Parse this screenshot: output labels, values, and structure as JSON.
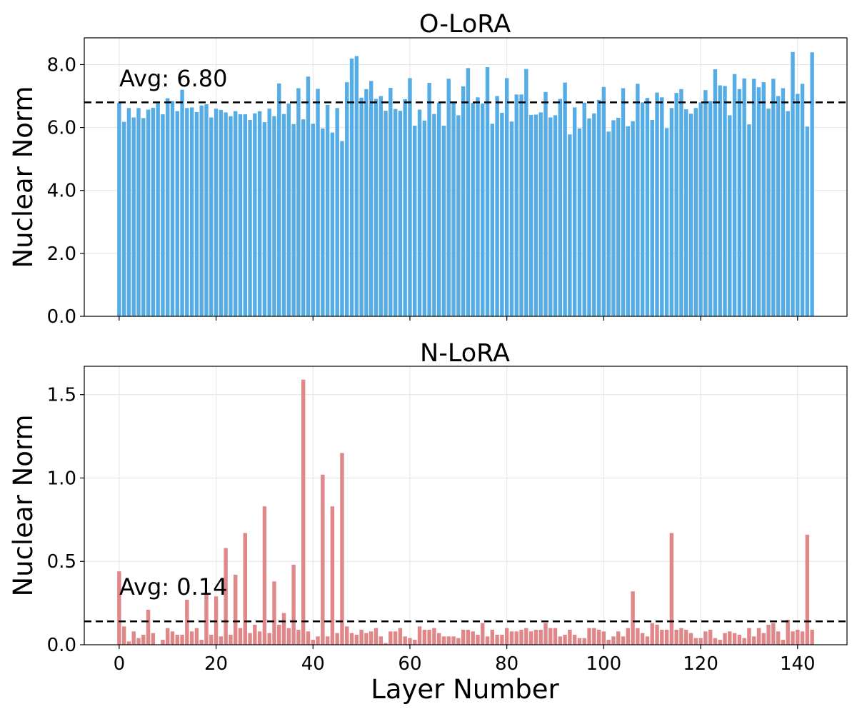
{
  "chart_data": [
    {
      "type": "bar",
      "title": "O-LoRA",
      "xlabel": "",
      "ylabel": "Nuclear Norm",
      "x_range": [
        -7.2,
        150.2
      ],
      "ylim": [
        0,
        8.85
      ],
      "yticks": [
        0,
        2,
        4,
        6,
        8
      ],
      "ytick_labels": [
        "0.0",
        "2.0",
        "4.0",
        "6.0",
        "8.0"
      ],
      "xticks": [
        0,
        20,
        40,
        60,
        80,
        100,
        120,
        140
      ],
      "xtick_labels_visible": false,
      "grid": true,
      "bar_color": "#56ade6",
      "average": 6.8,
      "average_label": "Avg: 6.80",
      "values": [
        6.78,
        6.18,
        6.62,
        6.32,
        6.62,
        6.3,
        6.57,
        6.63,
        6.77,
        6.42,
        6.93,
        6.84,
        6.52,
        7.2,
        6.62,
        6.64,
        6.49,
        6.7,
        6.74,
        6.32,
        6.6,
        6.56,
        6.48,
        6.36,
        6.52,
        6.42,
        6.42,
        6.24,
        6.45,
        6.52,
        6.17,
        6.6,
        6.36,
        7.4,
        6.43,
        6.76,
        6.11,
        7.25,
        6.26,
        7.62,
        6.12,
        7.23,
        5.97,
        6.72,
        5.84,
        6.62,
        5.57,
        7.44,
        8.19,
        8.27,
        6.95,
        7.22,
        7.48,
        6.91,
        7.0,
        6.53,
        7.26,
        6.59,
        6.53,
        6.9,
        7.57,
        6.06,
        6.57,
        6.22,
        7.42,
        6.43,
        6.79,
        6.06,
        7.55,
        6.83,
        6.39,
        7.31,
        7.89,
        6.78,
        6.96,
        6.76,
        7.92,
        6.12,
        7.0,
        6.47,
        7.57,
        6.19,
        7.05,
        7.05,
        7.86,
        6.4,
        6.41,
        6.48,
        7.13,
        6.32,
        6.39,
        6.91,
        7.43,
        5.78,
        6.64,
        5.97,
        6.79,
        6.29,
        6.45,
        6.88,
        7.29,
        5.87,
        6.23,
        6.31,
        7.25,
        6.04,
        6.2,
        7.39,
        6.8,
        6.94,
        6.24,
        7.11,
        6.96,
        5.98,
        6.62,
        7.1,
        7.22,
        6.58,
        6.44,
        6.62,
        6.8,
        7.19,
        6.84,
        7.85,
        7.34,
        7.32,
        6.39,
        7.7,
        7.22,
        7.56,
        6.1,
        7.55,
        7.28,
        7.44,
        6.6,
        7.55,
        7.0,
        7.25,
        6.52,
        8.4,
        7.07,
        7.39,
        6.03,
        8.39
      ]
    },
    {
      "type": "bar",
      "title": "N-LoRA",
      "xlabel": "Layer Number",
      "ylabel": "Nuclear Norm",
      "x_range": [
        -7.2,
        150.2
      ],
      "ylim": [
        0,
        1.67
      ],
      "yticks": [
        0,
        0.5,
        1.0,
        1.5
      ],
      "ytick_labels": [
        "0.0",
        "0.5",
        "1.0",
        "1.5"
      ],
      "xticks": [
        0,
        20,
        40,
        60,
        80,
        100,
        120,
        140
      ],
      "xtick_labels": [
        "0",
        "20",
        "40",
        "60",
        "80",
        "100",
        "120",
        "140"
      ],
      "grid": true,
      "bar_color": "#e0878a",
      "average": 0.14,
      "average_label": "Avg: 0.14",
      "values": [
        0.44,
        0.11,
        0.02,
        0.08,
        0.04,
        0.06,
        0.21,
        0.07,
        0.0,
        0.03,
        0.1,
        0.08,
        0.06,
        0.06,
        0.27,
        0.08,
        0.1,
        0.03,
        0.31,
        0.06,
        0.29,
        0.05,
        0.58,
        0.06,
        0.42,
        0.1,
        0.67,
        0.07,
        0.12,
        0.08,
        0.83,
        0.07,
        0.38,
        0.12,
        0.19,
        0.1,
        0.48,
        0.09,
        1.59,
        0.08,
        0.03,
        0.05,
        1.02,
        0.05,
        0.83,
        0.07,
        1.15,
        0.11,
        0.07,
        0.06,
        0.09,
        0.07,
        0.08,
        0.1,
        0.05,
        0.01,
        0.08,
        0.08,
        0.1,
        0.05,
        0.04,
        0.03,
        0.11,
        0.09,
        0.09,
        0.1,
        0.07,
        0.05,
        0.05,
        0.05,
        0.04,
        0.09,
        0.09,
        0.08,
        0.06,
        0.13,
        0.05,
        0.09,
        0.06,
        0.06,
        0.1,
        0.08,
        0.08,
        0.09,
        0.1,
        0.08,
        0.09,
        0.09,
        0.13,
        0.1,
        0.1,
        0.05,
        0.06,
        0.09,
        0.06,
        0.04,
        0.04,
        0.1,
        0.1,
        0.09,
        0.08,
        0.03,
        0.05,
        0.08,
        0.05,
        0.1,
        0.32,
        0.1,
        0.07,
        0.05,
        0.13,
        0.12,
        0.09,
        0.09,
        0.67,
        0.09,
        0.1,
        0.09,
        0.07,
        0.04,
        0.04,
        0.08,
        0.09,
        0.04,
        0.03,
        0.07,
        0.08,
        0.07,
        0.06,
        0.04,
        0.1,
        0.05,
        0.1,
        0.07,
        0.12,
        0.13,
        0.08,
        0.03,
        0.15,
        0.08,
        0.09,
        0.08,
        0.66,
        0.09
      ]
    }
  ]
}
